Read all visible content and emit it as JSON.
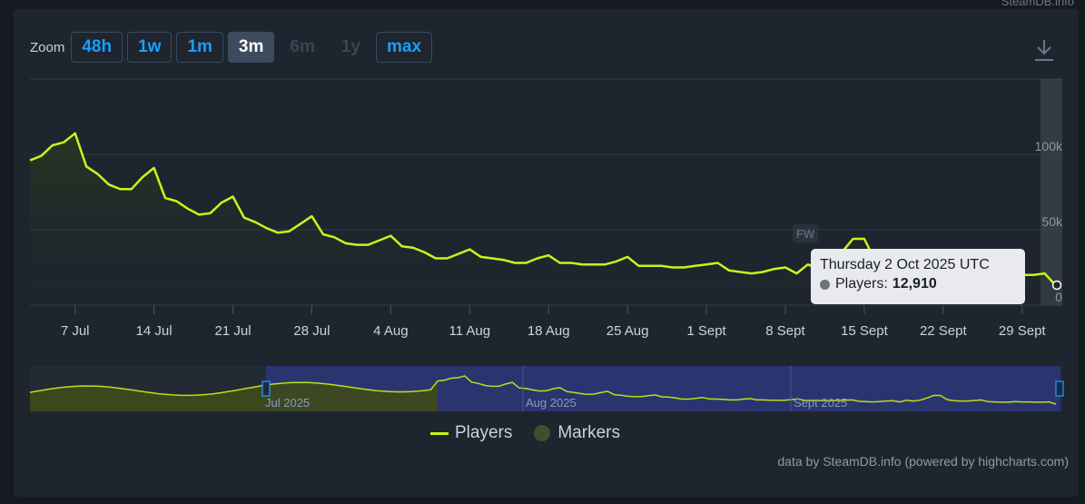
{
  "header_note": "SteamDB.info",
  "zoom": {
    "label": "Zoom",
    "buttons": [
      "48h",
      "1w",
      "1m",
      "3m",
      "6m",
      "1y",
      "max"
    ],
    "active": "3m",
    "disabled": [
      "6m",
      "1y"
    ]
  },
  "marker": {
    "label": "FW"
  },
  "tooltip": {
    "date": "Thursday 2 Oct 2025 UTC",
    "series": "Players:",
    "value": "12,910"
  },
  "navigator": {
    "labels": [
      "Jul 2025",
      "Aug 2025",
      "Sept 2025"
    ]
  },
  "legend": {
    "players": "Players",
    "markers": "Markers"
  },
  "credit": "data by SteamDB.info (powered by highcharts.com)",
  "colors": {
    "line": "#c8f519",
    "nav_fill": "#2e3a86",
    "marker": "#3f4f2c"
  },
  "chart_data": {
    "type": "line",
    "x_tick_labels": [
      "7 Jul",
      "14 Jul",
      "21 Jul",
      "28 Jul",
      "4 Aug",
      "11 Aug",
      "18 Aug",
      "25 Aug",
      "1 Sept",
      "8 Sept",
      "15 Sept",
      "22 Sept",
      "29 Sept"
    ],
    "y_tick_labels": [
      "100k",
      "50k",
      "0"
    ],
    "ylim": [
      0,
      150000
    ],
    "grid": true,
    "series": [
      {
        "name": "Players",
        "x_start": "2025-07-03",
        "step_days": 1,
        "values": [
          96000,
          99000,
          106000,
          108000,
          114000,
          92000,
          87000,
          80000,
          77000,
          77000,
          85000,
          91000,
          71000,
          69000,
          64000,
          60000,
          61000,
          68000,
          72000,
          58000,
          55000,
          51000,
          48000,
          49000,
          54000,
          59000,
          47000,
          45000,
          41000,
          40000,
          40000,
          43000,
          46000,
          39000,
          38000,
          35000,
          31000,
          31000,
          34000,
          37000,
          32000,
          31000,
          30000,
          28000,
          28000,
          31000,
          33000,
          28000,
          28000,
          27000,
          27000,
          27000,
          29000,
          32000,
          26000,
          26000,
          26000,
          25000,
          25000,
          26000,
          27000,
          28000,
          23000,
          22000,
          21000,
          22000,
          24000,
          25000,
          21000,
          27000,
          24000,
          27000,
          35000,
          44000,
          44000,
          29000,
          25000,
          24000,
          24000,
          26000,
          28000,
          22000,
          21000,
          20000,
          20000,
          22000,
          21000,
          21000,
          20000,
          20000,
          21000,
          12910
        ]
      }
    ]
  }
}
